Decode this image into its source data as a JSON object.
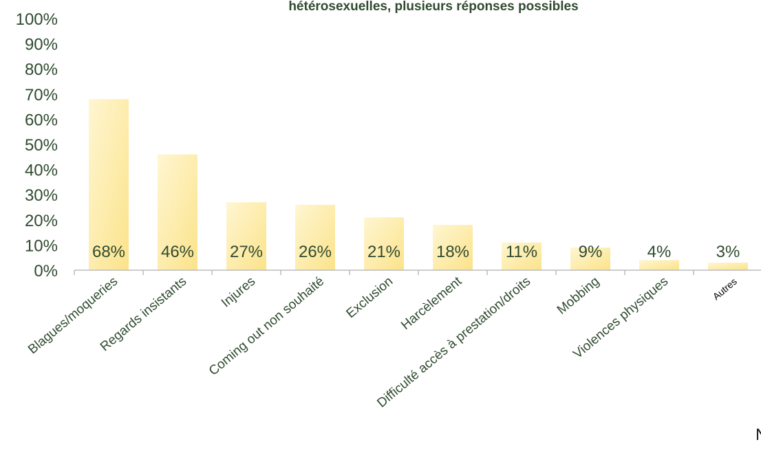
{
  "chart_data": {
    "type": "bar",
    "title": "hétérosexuelles, plusieurs réponses possibles",
    "categories": [
      "Blagues/moqueries",
      "Regards insistants",
      "Injures",
      "Coming out non souhaité",
      "Exclusion",
      "Harcèlement",
      "Difficulté accès à prestation/droits",
      "Mobbing",
      "Violences physiques",
      "Autres"
    ],
    "values": [
      68,
      46,
      27,
      26,
      21,
      18,
      11,
      9,
      4,
      3
    ],
    "data_labels": [
      "68%",
      "46%",
      "27%",
      "26%",
      "21%",
      "18%",
      "11%",
      "9%",
      "4%",
      "3%"
    ],
    "y_ticks": [
      "0%",
      "10%",
      "20%",
      "30%",
      "40%",
      "50%",
      "60%",
      "70%",
      "80%",
      "90%",
      "100%"
    ],
    "ylim": [
      0,
      100
    ],
    "xlabel": "",
    "ylabel": "",
    "grid": false,
    "legend": "none",
    "colors": {
      "bar_light": "#fff6d2",
      "bar_dark": "#fbe38a",
      "text": "#2f4a2f",
      "axis": "#bbbbbb"
    }
  },
  "corner_text": "N"
}
